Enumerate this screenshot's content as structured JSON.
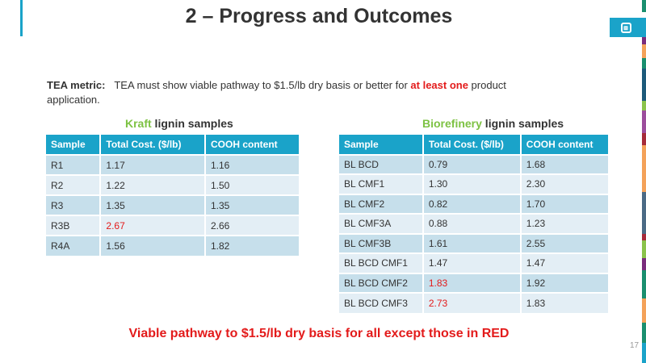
{
  "title": "2 – Progress and Outcomes",
  "metric": {
    "label": "TEA metric:",
    "text1": "TEA must show viable pathway to $1.5/lb dry basis or better for ",
    "highlight": "at least one",
    "text2": " product application."
  },
  "kraft": {
    "caption_accent": "Kraft",
    "caption_rest": " lignin samples",
    "headers": [
      "Sample",
      "Total Cost. ($/lb)",
      "COOH content"
    ],
    "rows": [
      [
        "R1",
        "1.17",
        "1.16"
      ],
      [
        "R2",
        "1.22",
        "1.50"
      ],
      [
        "R3",
        "1.35",
        "1.35"
      ],
      [
        "R3B",
        "2.67",
        "2.66"
      ],
      [
        "R4A",
        "1.56",
        "1.82"
      ]
    ],
    "red_rows": [
      3
    ]
  },
  "biorefinery": {
    "caption_accent": "Biorefinery",
    "caption_rest": " lignin samples",
    "headers": [
      "Sample",
      "Total Cost. ($/lb)",
      "COOH content"
    ],
    "rows": [
      [
        "BL BCD",
        "0.79",
        "1.68"
      ],
      [
        "BL CMF1",
        "1.30",
        "2.30"
      ],
      [
        "BL CMF2",
        "0.82",
        "1.70"
      ],
      [
        "BL CMF3A",
        "0.88",
        "1.23"
      ],
      [
        "BL CMF3B",
        "1.61",
        "2.55"
      ],
      [
        "BL BCD CMF1",
        "1.47",
        "1.47"
      ],
      [
        "BL BCD CMF2",
        "1.83",
        "1.92"
      ],
      [
        "BL BCD CMF3",
        "2.73",
        "1.83"
      ]
    ],
    "red_rows": [
      6,
      7
    ]
  },
  "footer": "Viable pathway to $1.5/lb dry basis for all except those in RED",
  "page_number": "17",
  "colors": {
    "accent": "#1aa3c9",
    "red": "#e31b1b",
    "green": "#7dc243"
  }
}
